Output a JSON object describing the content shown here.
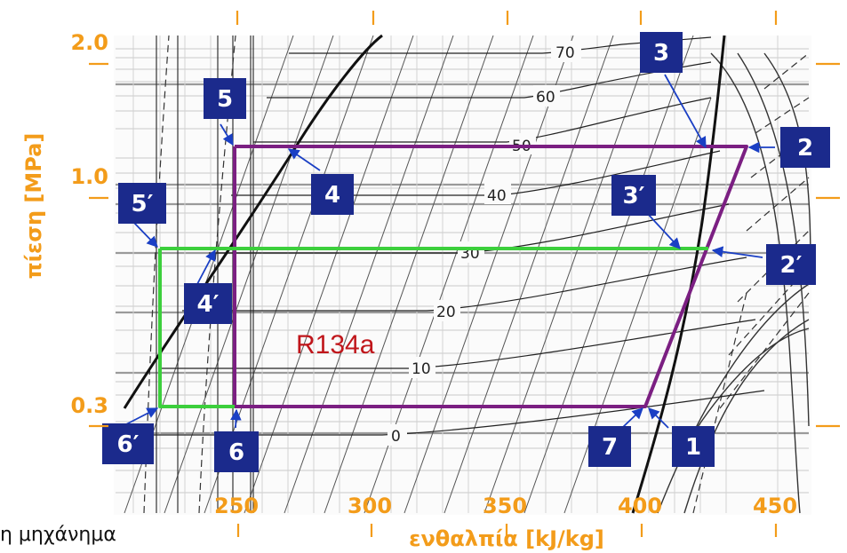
{
  "axes": {
    "ylabel": "πίεση [MPa]",
    "xlabel": "ενθαλπία [kJ/kg]",
    "y_ticks": [
      "2.0",
      "1.0",
      "0.3"
    ],
    "x_ticks": [
      "250",
      "300",
      "350",
      "400",
      "450"
    ]
  },
  "refrigerant": "R134a",
  "isotherm_labels": [
    "70",
    "60",
    "50",
    "40",
    "30",
    "20",
    "10",
    "0"
  ],
  "states": {
    "s1": "1",
    "s2": "2",
    "s2p": "2′",
    "s3": "3",
    "s3p": "3′",
    "s4": "4",
    "s4p": "4′",
    "s5": "5",
    "s5p": "5′",
    "s6": "6",
    "s6p": "6′",
    "s7": "7"
  },
  "caption": "η μηχάνημα",
  "colors": {
    "accent": "#f39c1a",
    "cycle_high": "#7b1f82",
    "cycle_low": "#3ccf3c",
    "state_box": "#1b2a8c",
    "refrigerant_label": "#c0161b"
  }
}
